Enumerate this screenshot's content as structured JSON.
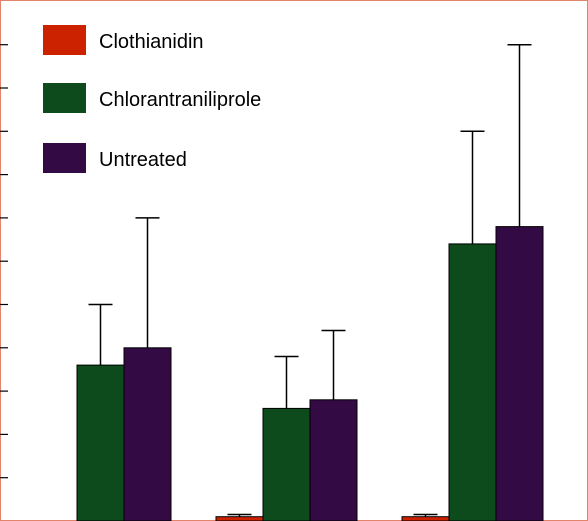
{
  "chart_data": {
    "type": "bar",
    "title": "",
    "xlabel": "",
    "ylabel": "",
    "ylim": [
      0,
      12
    ],
    "ytick_step": 1,
    "grid": false,
    "legend_position": "top-left",
    "groups": 3,
    "series": [
      {
        "name": "Clothianidin",
        "color": "#cc2200",
        "values": [
          0,
          0.1,
          0.1
        ],
        "errors": [
          0,
          0.05,
          0.05
        ]
      },
      {
        "name": "Chlorantraniliprole",
        "color": "#0d4a1c",
        "values": [
          3.6,
          2.6,
          6.4
        ],
        "errors": [
          1.4,
          1.2,
          2.6
        ]
      },
      {
        "name": "Untreated",
        "color": "#330a44",
        "values": [
          4.0,
          2.8,
          6.8
        ],
        "errors": [
          3.0,
          1.6,
          4.2
        ]
      }
    ]
  }
}
